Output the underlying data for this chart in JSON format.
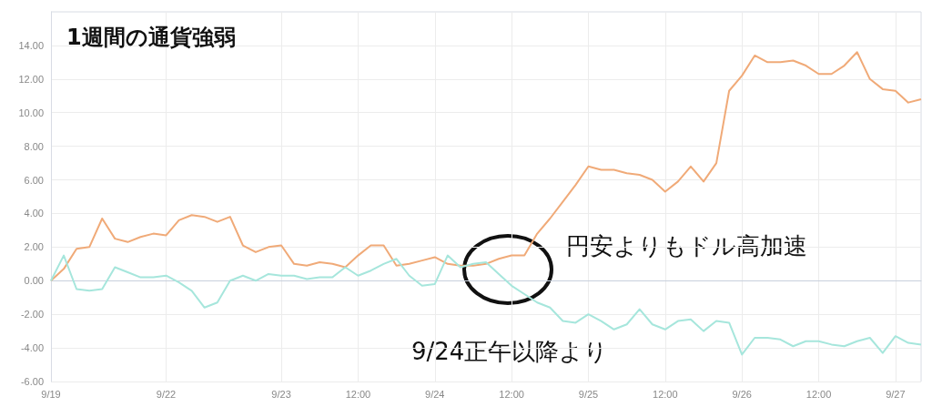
{
  "chart_data": {
    "type": "line",
    "title": "1週間の通貨強弱",
    "categories": [
      "9/19",
      null,
      null,
      null,
      null,
      null,
      null,
      null,
      null,
      "9/22",
      null,
      null,
      null,
      null,
      null,
      null,
      null,
      null,
      "9/23",
      null,
      null,
      null,
      null,
      null,
      "12:00",
      null,
      null,
      null,
      null,
      null,
      "9/24",
      null,
      null,
      null,
      null,
      null,
      "12:00",
      null,
      null,
      null,
      null,
      null,
      "9/25",
      null,
      null,
      null,
      null,
      null,
      "12:00",
      null,
      null,
      null,
      null,
      null,
      "9/26",
      null,
      null,
      null,
      null,
      null,
      "12:00",
      null,
      null,
      null,
      null,
      null,
      "9/27",
      null,
      null
    ],
    "series": [
      {
        "color": "#f0aa78",
        "values": [
          0.0,
          0.7,
          1.9,
          2.0,
          3.7,
          2.5,
          2.3,
          2.6,
          2.8,
          2.7,
          3.6,
          3.9,
          3.8,
          3.5,
          3.8,
          2.1,
          1.7,
          2.0,
          2.1,
          1.0,
          0.9,
          1.1,
          1.0,
          0.8,
          1.5,
          2.1,
          2.1,
          0.9,
          1.0,
          1.2,
          1.4,
          1.0,
          0.9,
          0.9,
          1.0,
          1.3,
          1.5,
          1.5,
          2.8,
          3.7,
          4.7,
          5.7,
          6.8,
          6.6,
          6.6,
          6.4,
          6.3,
          6.0,
          5.3,
          5.9,
          6.8,
          5.9,
          7.0,
          11.3,
          12.2,
          13.4,
          13.0,
          13.0,
          13.1,
          12.8,
          12.3,
          12.3,
          12.8,
          13.6,
          12.0,
          11.4,
          11.3,
          10.6,
          10.8
        ]
      },
      {
        "color": "#a6e6dc",
        "values": [
          0.0,
          1.5,
          -0.5,
          -0.6,
          -0.5,
          0.8,
          0.5,
          0.2,
          0.2,
          0.3,
          -0.1,
          -0.6,
          -1.6,
          -1.3,
          0.0,
          0.3,
          0.0,
          0.4,
          0.3,
          0.3,
          0.1,
          0.2,
          0.2,
          0.8,
          0.3,
          0.6,
          1.0,
          1.3,
          0.3,
          -0.3,
          -0.2,
          1.5,
          0.8,
          1.0,
          1.1,
          0.4,
          -0.3,
          -0.8,
          -1.3,
          -1.6,
          -2.4,
          -2.5,
          -2.0,
          -2.4,
          -2.9,
          -2.6,
          -1.7,
          -2.6,
          -2.9,
          -2.4,
          -2.3,
          -3.0,
          -2.4,
          -2.5,
          -4.4,
          -3.4,
          -3.4,
          -3.5,
          -3.9,
          -3.6,
          -3.6,
          -3.8,
          -3.9,
          -3.6,
          -3.4,
          -4.3,
          -3.3,
          -3.7,
          -3.8
        ]
      }
    ],
    "ylim": [
      -6,
      16
    ],
    "yticks": [
      {
        "value": -6,
        "label": "-6.00"
      },
      {
        "value": -4,
        "label": "-4.00"
      },
      {
        "value": -2,
        "label": "-2.00"
      },
      {
        "value": 0,
        "label": "0.00"
      },
      {
        "value": 2,
        "label": "2.00"
      },
      {
        "value": 4,
        "label": "4.00"
      },
      {
        "value": 6,
        "label": "6.00"
      },
      {
        "value": 8,
        "label": "8.00"
      },
      {
        "value": 10,
        "label": "10.00"
      },
      {
        "value": 12,
        "label": "12.00"
      },
      {
        "value": 14,
        "label": "14.00"
      }
    ],
    "grid": true,
    "marker": "none",
    "line_style": "solid",
    "annotations": [
      "円安よりもドル高加速",
      "9/24正午以降より"
    ]
  }
}
